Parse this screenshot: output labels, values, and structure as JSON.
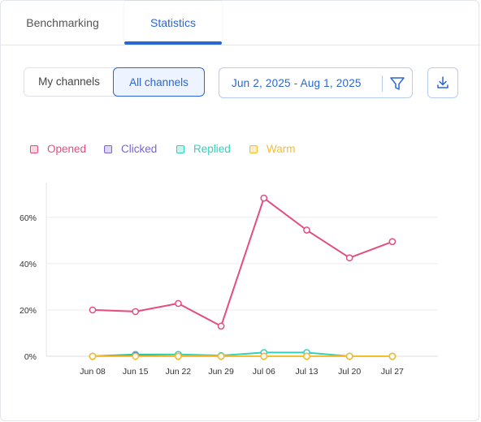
{
  "tabs": [
    {
      "label": "Benchmarking",
      "active": false
    },
    {
      "label": "Statistics",
      "active": true
    }
  ],
  "channel_toggle": {
    "options": [
      "My channels",
      "All channels"
    ],
    "selected": "All channels"
  },
  "date_range": {
    "label": "Jun 2, 2025 - Aug 1, 2025",
    "filter_icon": "filter-icon"
  },
  "download": {
    "icon": "download-icon"
  },
  "colors": {
    "opened": "#e34d82",
    "clicked": "#7a62dd",
    "replied": "#2fd3bd",
    "warm": "#f5bf2c",
    "accent": "#2a66d6"
  },
  "chart_data": {
    "type": "line",
    "x": [
      "Jun 08",
      "Jun 15",
      "Jun 22",
      "Jun 29",
      "Jul 06",
      "Jul 13",
      "Jul 20",
      "Jul 27"
    ],
    "yticks": [
      "0%",
      "20%",
      "40%",
      "60%"
    ],
    "ylim": [
      0,
      75
    ],
    "grid": true,
    "legend_position": "top-left",
    "series": [
      {
        "name": "Opened",
        "color": "#e34d82",
        "values": [
          20,
          19.3,
          22.8,
          13,
          68.3,
          54.5,
          42.5,
          49.5
        ]
      },
      {
        "name": "Clicked",
        "color": "#7a62dd",
        "values": [
          0,
          0.3,
          0,
          0,
          0,
          0,
          0,
          0
        ]
      },
      {
        "name": "Replied",
        "color": "#2fd3bd",
        "values": [
          0,
          0.8,
          0.8,
          0.3,
          1.6,
          1.6,
          0,
          0
        ]
      },
      {
        "name": "Warm",
        "color": "#f5bf2c",
        "values": [
          0,
          0,
          0,
          0,
          0,
          0,
          0,
          0
        ]
      }
    ]
  }
}
